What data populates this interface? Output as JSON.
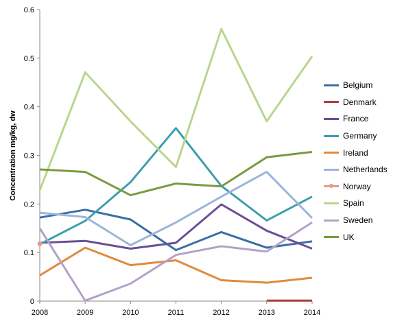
{
  "chart_data": {
    "type": "line",
    "title": "",
    "xlabel": "",
    "ylabel": "Concentration mg/kg, dw",
    "categories": [
      "2008",
      "2009",
      "2010",
      "2011",
      "2012",
      "2013",
      "2014"
    ],
    "y_ticks": [
      "0",
      "0.1",
      "0.2",
      "0.3",
      "0.4",
      "0.5",
      "0.6"
    ],
    "ylim": [
      0,
      0.6
    ],
    "grid": false,
    "legend_position": "right",
    "series": [
      {
        "name": "Belgium",
        "color": "#3b6ea5",
        "values": [
          0.172,
          0.188,
          0.168,
          0.105,
          0.142,
          0.11,
          0.123
        ]
      },
      {
        "name": "Denmark",
        "color": "#b03a3a",
        "values": [
          null,
          null,
          null,
          null,
          null,
          0.001,
          0.001
        ]
      },
      {
        "name": "France",
        "color": "#6a4f96",
        "values": [
          0.12,
          0.124,
          0.108,
          0.12,
          0.199,
          0.145,
          0.108
        ]
      },
      {
        "name": "Germany",
        "color": "#3d9eae",
        "values": [
          0.117,
          0.165,
          0.245,
          0.356,
          0.237,
          0.166,
          0.215
        ]
      },
      {
        "name": "Ireland",
        "color": "#e08a3c",
        "values": [
          0.053,
          0.11,
          0.074,
          0.084,
          0.043,
          0.038,
          0.048
        ]
      },
      {
        "name": "Netherlands",
        "color": "#9cb5d9",
        "values": [
          0.182,
          0.173,
          0.115,
          0.162,
          0.215,
          0.266,
          0.171
        ]
      },
      {
        "name": "Norway",
        "color": "#e69a8d",
        "marker": true,
        "values": [
          0.118,
          null,
          null,
          null,
          null,
          null,
          null
        ]
      },
      {
        "name": "Spain",
        "color": "#b8d68e",
        "values": [
          0.228,
          0.471,
          0.37,
          0.276,
          0.56,
          0.37,
          0.504
        ]
      },
      {
        "name": "Sweden",
        "color": "#b3a2c7",
        "values": [
          0.15,
          0.001,
          0.036,
          0.095,
          0.113,
          0.102,
          0.162
        ]
      },
      {
        "name": "UK",
        "color": "#7a9a40",
        "values": [
          0.271,
          0.266,
          0.218,
          0.242,
          0.236,
          0.296,
          0.307
        ]
      }
    ]
  }
}
